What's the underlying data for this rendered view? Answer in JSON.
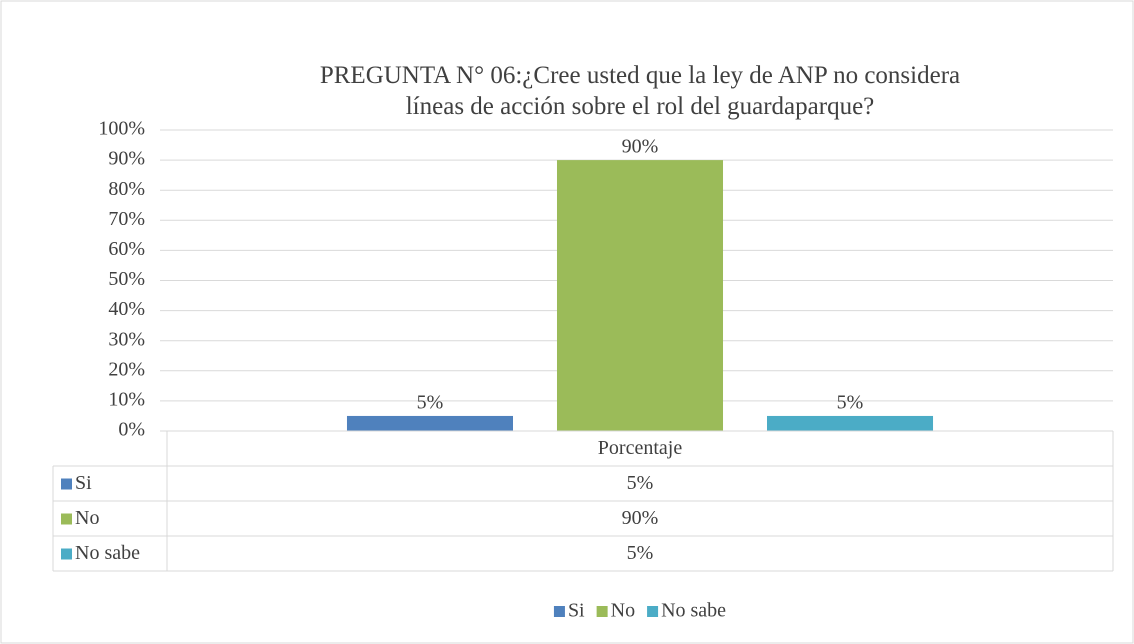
{
  "chart_data": {
    "type": "bar",
    "title": "PREGUNTA N° 06:¿Cree usted que la ley de ANP no considera líneas de acción sobre el rol del guardaparque?",
    "categories": [
      "Porcentaje"
    ],
    "series": [
      {
        "name": "Si",
        "color": "#4f81bd",
        "values": [
          5
        ],
        "value_labels": [
          "5%"
        ]
      },
      {
        "name": "No",
        "color": "#9bbb59",
        "values": [
          90
        ],
        "value_labels": [
          "90%"
        ]
      },
      {
        "name": "No sabe",
        "color": "#4bacc6",
        "values": [
          5
        ],
        "value_labels": [
          "5%"
        ]
      }
    ],
    "ylim": [
      0,
      100
    ],
    "yticks": [
      {
        "value": 0,
        "label": "0%"
      },
      {
        "value": 10,
        "label": "10%"
      },
      {
        "value": 20,
        "label": "20%"
      },
      {
        "value": 30,
        "label": "30%"
      },
      {
        "value": 40,
        "label": "40%"
      },
      {
        "value": 50,
        "label": "50%"
      },
      {
        "value": 60,
        "label": "60%"
      },
      {
        "value": 70,
        "label": "70%"
      },
      {
        "value": 80,
        "label": "80%"
      },
      {
        "value": 90,
        "label": "90%"
      },
      {
        "value": 100,
        "label": "100%"
      }
    ],
    "grid": true,
    "data_table": true,
    "legend": "bottom"
  }
}
